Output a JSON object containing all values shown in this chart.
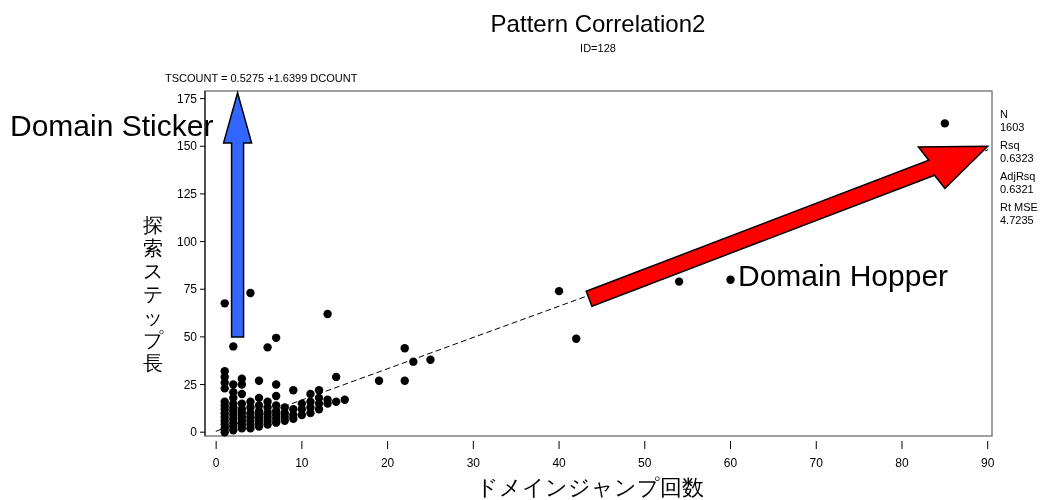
{
  "chart_data": {
    "type": "scatter",
    "title": "Pattern Correlation2",
    "subtitle": "ID=128",
    "xlabel": "ドメインジャンプ回数",
    "ylabel": "探索ステップ長",
    "annotations": [
      "TSCOUNT = 0.5275 +1.6399 DCOUNT",
      "N",
      "1603",
      "Rsq",
      "0.6323",
      "AdjRsq",
      "0.6321",
      "Rt MSE",
      "4.7235",
      "Domain Sticker",
      "Domain Hopper"
    ],
    "xlim": [
      -1.3,
      90.5
    ],
    "ylim": [
      -2,
      179
    ],
    "xticks": [
      0,
      10,
      20,
      30,
      40,
      50,
      60,
      70,
      80,
      90
    ],
    "yticks": [
      0,
      25,
      50,
      75,
      100,
      125,
      150,
      175
    ],
    "marker": "circle",
    "series": [
      {
        "color": "#000000",
        "x": [
          1,
          1,
          1,
          1,
          1,
          1,
          1,
          1,
          1,
          1,
          1,
          1,
          1,
          1,
          2,
          2,
          2,
          2,
          2,
          2,
          2,
          2,
          2,
          2,
          2,
          2,
          3,
          3,
          3,
          3,
          3,
          3,
          3,
          3,
          3,
          3,
          4,
          4,
          4,
          4,
          4,
          4,
          4,
          4,
          5,
          5,
          5,
          5,
          5,
          5,
          5,
          5,
          6,
          6,
          6,
          6,
          6,
          6,
          6,
          7,
          7,
          7,
          7,
          7,
          7,
          7,
          7,
          8,
          8,
          8,
          8,
          9,
          9,
          9,
          9,
          10,
          10,
          10,
          11,
          11,
          11,
          11,
          12,
          12,
          12,
          12,
          13,
          13,
          13,
          14,
          14,
          15,
          19,
          22,
          22,
          23,
          25,
          40,
          42,
          54,
          60,
          85
        ],
        "values": [
          0,
          2,
          4,
          6,
          8,
          10,
          12,
          14,
          16,
          23,
          26,
          29,
          32,
          67.6,
          1,
          3,
          5,
          7,
          9,
          11,
          13,
          15,
          18,
          21,
          25,
          45,
          2,
          4,
          6,
          8,
          10,
          12,
          15,
          20,
          25,
          28,
          2,
          4,
          6,
          8,
          10,
          13,
          16,
          73,
          3,
          5,
          7,
          9,
          11,
          14,
          18,
          27,
          4,
          6,
          8,
          10,
          13,
          16,
          44.5,
          5,
          7,
          9,
          11,
          14,
          19,
          25,
          49.5,
          6,
          8,
          10,
          13,
          7,
          9,
          12,
          22,
          9,
          12,
          15,
          10,
          13,
          16,
          20,
          12,
          15,
          18,
          22,
          15,
          17,
          62,
          16,
          29,
          17,
          27,
          27,
          44,
          37,
          38,
          74,
          49,
          79,
          80,
          162
        ]
      },
      {
        "type": "line",
        "color": "#000000",
        "line_style": "dashed",
        "marker": "none",
        "x": [
          0,
          90
        ],
        "values": [
          0.5,
          148.1
        ]
      }
    ]
  }
}
